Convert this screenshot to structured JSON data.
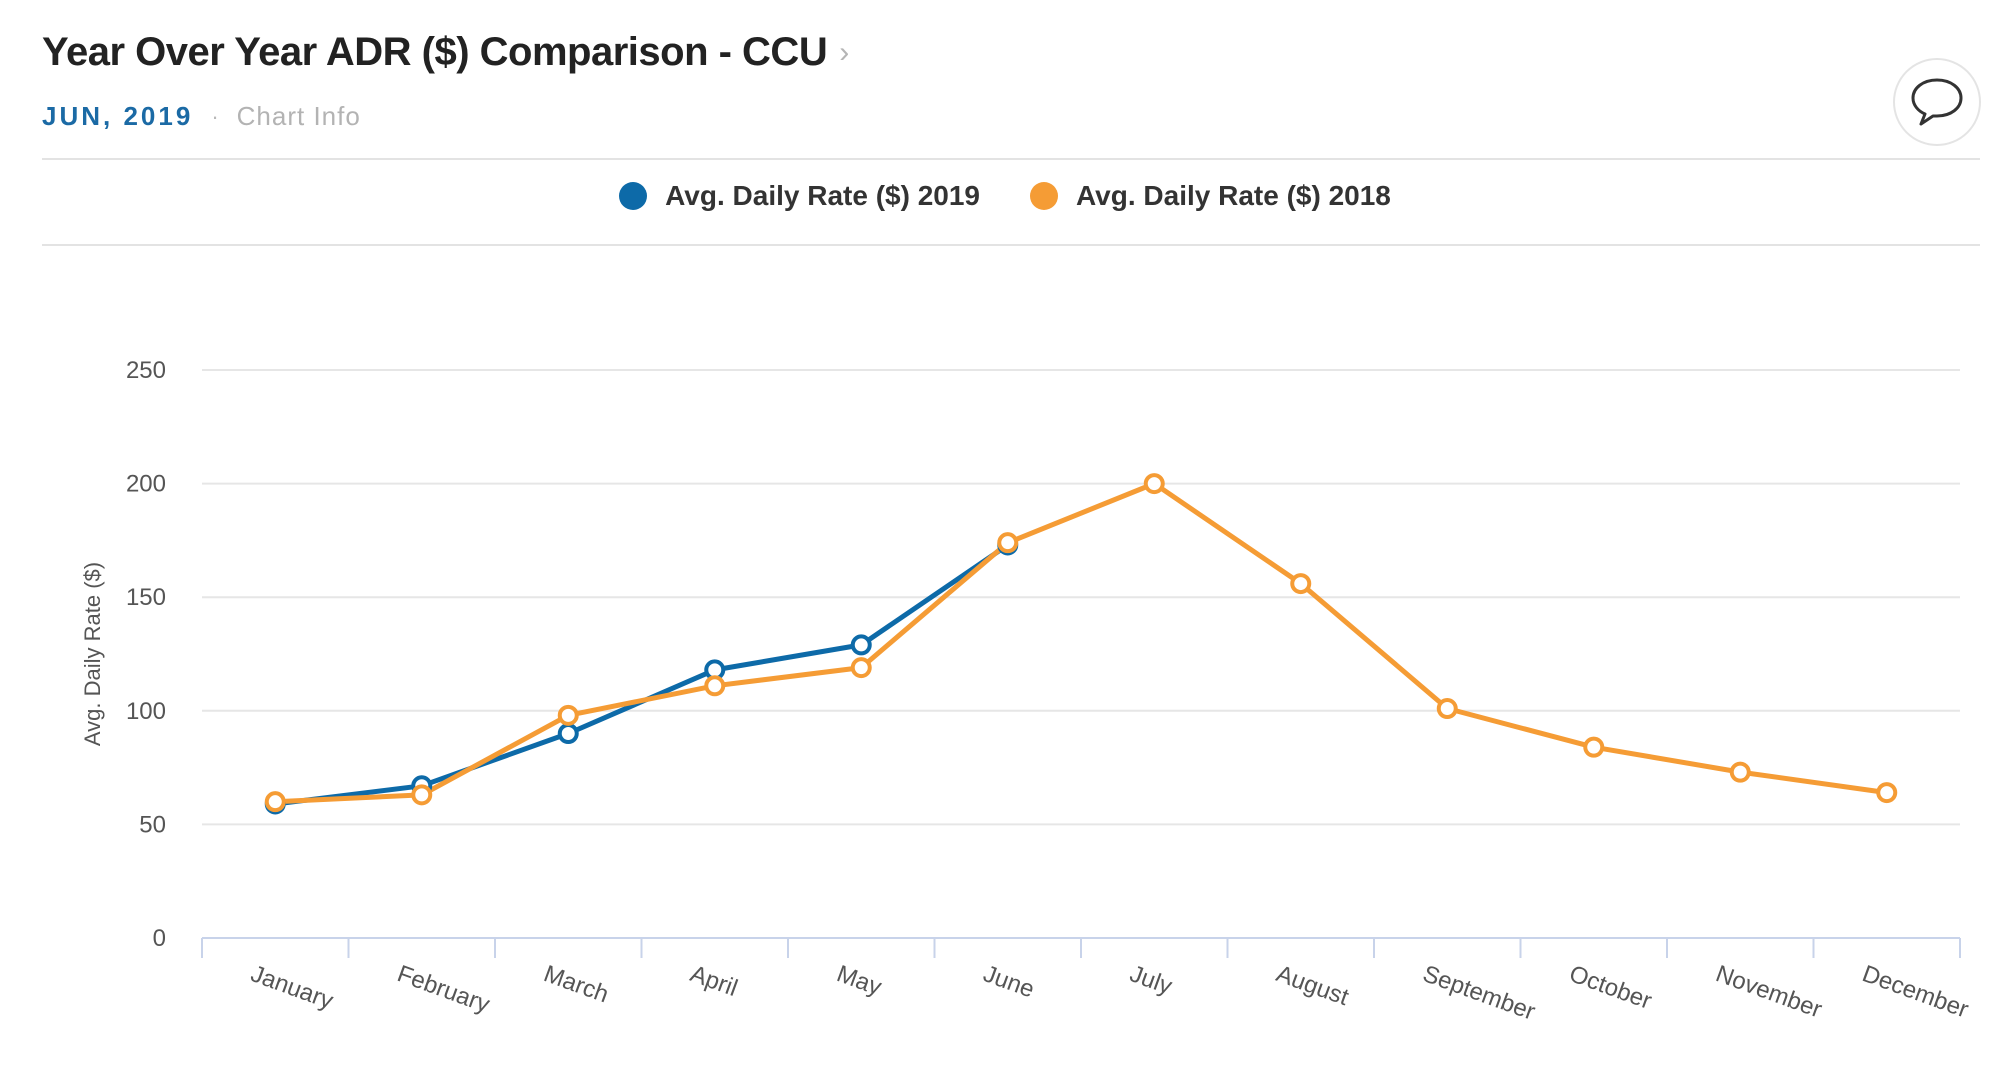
{
  "header": {
    "title": "Year Over Year ADR ($) Comparison - CCU",
    "chevron": "›",
    "period": "JUN, 2019",
    "separator": "·",
    "chart_info": "Chart Info"
  },
  "icons": {
    "comment": "speech-bubble-icon"
  },
  "colors": {
    "series_2019": "#0d6aa8",
    "series_2018": "#f59c35",
    "grid": "#e6e6e6",
    "axis": "#c8d3ea"
  },
  "chart_data": {
    "type": "line",
    "title": "Year Over Year ADR ($) Comparison - CCU",
    "xlabel": "",
    "ylabel": "Avg. Daily Rate ($)",
    "ylim": [
      0,
      250
    ],
    "yticks": [
      0,
      50,
      100,
      150,
      200,
      250
    ],
    "categories": [
      "January",
      "February",
      "March",
      "April",
      "May",
      "June",
      "July",
      "August",
      "September",
      "October",
      "November",
      "December"
    ],
    "legend_position": "top-center",
    "grid": true,
    "series": [
      {
        "name": "Avg. Daily Rate ($) 2019",
        "color": "#0d6aa8",
        "values": [
          59,
          67,
          90,
          118,
          129,
          173,
          null,
          null,
          null,
          null,
          null,
          null
        ]
      },
      {
        "name": "Avg. Daily Rate ($) 2018",
        "color": "#f59c35",
        "values": [
          60,
          63,
          98,
          111,
          119,
          174,
          200,
          156,
          101,
          84,
          73,
          64
        ]
      }
    ]
  }
}
